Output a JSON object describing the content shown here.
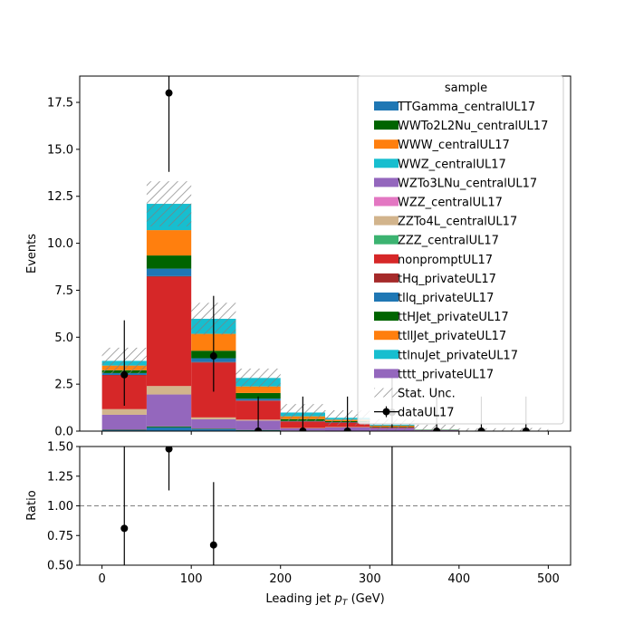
{
  "chart_data": {
    "type": "bar",
    "stacked": true,
    "x_unit_label_prefix": "Leading jet",
    "xlabel": "Leading jet  p_T (GeV)",
    "xlabel_main": "p",
    "xlabel_sub": "T",
    "xlabel_unit": "(GeV)",
    "ylabel": "Events",
    "ratio_ylabel": "Ratio",
    "xlim": [
      -25,
      525
    ],
    "ylim": [
      0,
      18.9
    ],
    "ratio_ylim": [
      0.5,
      1.5
    ],
    "bin_edges": [
      0,
      50,
      100,
      150,
      200,
      250,
      300,
      350,
      400,
      450,
      500
    ],
    "xticks": [
      "0",
      "100",
      "200",
      "300",
      "400",
      "500"
    ],
    "xtick_values": [
      0,
      100,
      200,
      300,
      400,
      500
    ],
    "yticks": [
      "0.0",
      "2.5",
      "5.0",
      "7.5",
      "10.0",
      "12.5",
      "15.0",
      "17.5"
    ],
    "ytick_values": [
      0,
      2.5,
      5,
      7.5,
      10,
      12.5,
      15,
      17.5
    ],
    "ratio_yticks": [
      "0.50",
      "0.75",
      "1.00",
      "1.25",
      "1.50"
    ],
    "ratio_ytick_values": [
      0.5,
      0.75,
      1.0,
      1.25,
      1.5
    ],
    "legend_title": "sample",
    "legend_position": "top-right",
    "series": [
      {
        "name": "TTGamma_centralUL17",
        "color": "#1f77b4",
        "values": [
          0.05,
          0.2,
          0.1,
          0.05,
          0.02,
          0.02,
          0.01,
          0.0,
          0.0,
          0.0
        ]
      },
      {
        "name": "WWTo2L2Nu_centralUL17",
        "color": "#006400",
        "values": [
          0.02,
          0.05,
          0.03,
          0.01,
          0.01,
          0.0,
          0.0,
          0.0,
          0.0,
          0.0
        ]
      },
      {
        "name": "WWW_centralUL17",
        "color": "#ff7f0e",
        "values": [
          0.0,
          0.0,
          0.0,
          0.0,
          0.0,
          0.0,
          0.0,
          0.0,
          0.0,
          0.0
        ]
      },
      {
        "name": "WWZ_centralUL17",
        "color": "#17becf",
        "values": [
          0.0,
          0.0,
          0.0,
          0.0,
          0.0,
          0.0,
          0.0,
          0.0,
          0.0,
          0.0
        ]
      },
      {
        "name": "WZTo3LNu_centralUL17",
        "color": "#9467bd",
        "values": [
          0.8,
          1.7,
          0.5,
          0.5,
          0.12,
          0.18,
          0.15,
          0.05,
          0.0,
          0.02
        ]
      },
      {
        "name": "WZZ_centralUL17",
        "color": "#e377c2",
        "values": [
          0.0,
          0.0,
          0.0,
          0.0,
          0.0,
          0.0,
          0.0,
          0.0,
          0.0,
          0.0
        ]
      },
      {
        "name": "ZZTo4L_centralUL17",
        "color": "#d2b48c",
        "values": [
          0.3,
          0.45,
          0.1,
          0.05,
          0.02,
          0.02,
          0.0,
          0.0,
          0.0,
          0.0
        ]
      },
      {
        "name": "ZZZ_centralUL17",
        "color": "#3cb371",
        "values": [
          0.0,
          0.0,
          0.0,
          0.0,
          0.0,
          0.0,
          0.0,
          0.0,
          0.0,
          0.0
        ]
      },
      {
        "name": "nonpromptUL17",
        "color": "#d62728",
        "values": [
          1.8,
          5.8,
          2.9,
          1.0,
          0.35,
          0.25,
          0.05,
          0.0,
          0.0,
          0.0
        ]
      },
      {
        "name": "tHq_privateUL17",
        "color": "#a52a2a",
        "values": [
          0.02,
          0.05,
          0.05,
          0.02,
          0.0,
          0.0,
          0.0,
          0.0,
          0.0,
          0.0
        ]
      },
      {
        "name": "tllq_privateUL17",
        "color": "#1f77b4",
        "values": [
          0.1,
          0.4,
          0.2,
          0.1,
          0.02,
          0.01,
          0.0,
          0.0,
          0.0,
          0.0
        ]
      },
      {
        "name": "ttHJet_privateUL17",
        "color": "#006400",
        "values": [
          0.15,
          0.7,
          0.4,
          0.3,
          0.1,
          0.05,
          0.03,
          0.0,
          0.0,
          0.0
        ]
      },
      {
        "name": "ttllJet_privateUL17",
        "color": "#ff7f0e",
        "values": [
          0.25,
          1.35,
          0.9,
          0.35,
          0.15,
          0.08,
          0.05,
          0.02,
          0.0,
          0.0
        ]
      },
      {
        "name": "ttlnuJet_privateUL17",
        "color": "#17becf",
        "values": [
          0.25,
          1.4,
          0.8,
          0.45,
          0.2,
          0.1,
          0.05,
          0.02,
          0.0,
          0.0
        ]
      },
      {
        "name": "tttt_privateUL17",
        "color": "#9467bd",
        "values": [
          0.0,
          0.0,
          0.0,
          0.0,
          0.0,
          0.0,
          0.0,
          0.0,
          0.0,
          0.0
        ]
      }
    ],
    "stat_unc_label": "Stat. Unc.",
    "stat_unc_halfwidth": [
      0.7,
      1.2,
      0.85,
      0.5,
      0.45,
      0.4,
      0.3,
      0.25,
      0.15,
      0.15
    ],
    "data": {
      "name": "dataUL17",
      "x": [
        25,
        75,
        125,
        175,
        225,
        275,
        325,
        375,
        425,
        475
      ],
      "y": [
        3,
        18,
        4,
        0,
        0,
        0,
        1,
        0,
        0,
        0
      ],
      "yerr_low": [
        1.65,
        4.2,
        1.9,
        0,
        0,
        0,
        0.83,
        0,
        0,
        0
      ],
      "yerr_high": [
        2.9,
        5.3,
        3.2,
        1.84,
        1.84,
        1.84,
        2.3,
        1.84,
        1.84,
        1.84
      ]
    },
    "ratio": {
      "reference_line": 1.0,
      "points": [
        {
          "x": 25,
          "y": 0.81,
          "low": 0.5,
          "high": 1.5
        },
        {
          "x": 75,
          "y": 1.48,
          "low": 1.13,
          "high": 1.5
        },
        {
          "x": 125,
          "y": 0.67,
          "low": 0.5,
          "high": 1.2
        },
        {
          "x": 325,
          "y": null,
          "low": 0.5,
          "high": 1.5
        }
      ]
    }
  }
}
